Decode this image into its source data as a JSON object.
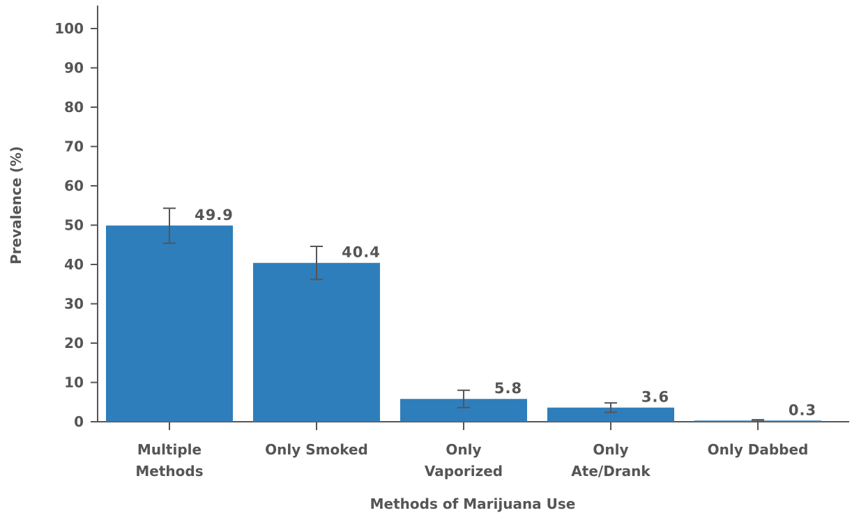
{
  "chart_data": {
    "type": "bar",
    "title": "",
    "xlabel": "Methods of Marijuana Use",
    "ylabel": "Prevalence (%)",
    "ylim": [
      0,
      100
    ],
    "yticks": [
      0,
      10,
      20,
      30,
      40,
      50,
      60,
      70,
      80,
      90,
      100
    ],
    "ytick_labels": [
      "0",
      "10",
      "20",
      "30",
      "40",
      "50",
      "60",
      "70",
      "80",
      "90",
      "100"
    ],
    "grid": false,
    "bar_color": "#2e7ebc",
    "categories": [
      [
        "Multiple",
        "Methods"
      ],
      [
        "Only Smoked"
      ],
      [
        "Only",
        "Vaporized"
      ],
      [
        "Only",
        "Ate/Drank"
      ],
      [
        "Only Dabbed"
      ]
    ],
    "values": [
      49.9,
      40.4,
      5.8,
      3.6,
      0.3
    ],
    "value_labels": [
      "49.9",
      "40.4",
      "5.8",
      "3.6",
      "0.3"
    ],
    "error_bars": [
      {
        "low": 45.4,
        "high": 54.3
      },
      {
        "low": 36.2,
        "high": 44.6
      },
      {
        "low": 3.6,
        "high": 8.0
      },
      {
        "low": 2.4,
        "high": 4.8
      },
      {
        "low": 0.1,
        "high": 0.5
      }
    ]
  }
}
